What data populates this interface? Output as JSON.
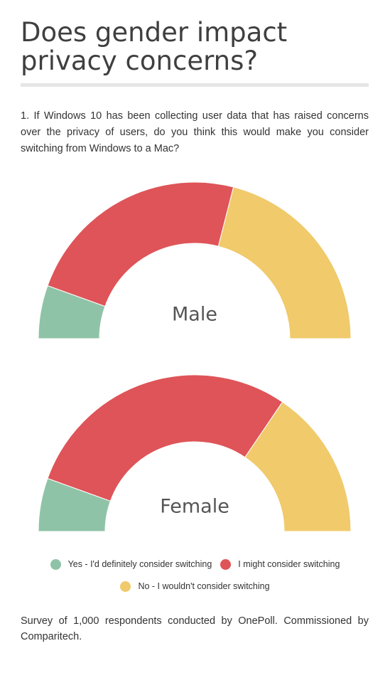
{
  "title": "Does gender impact privacy concerns?",
  "question": "1. If Windows 10 has been collecting user data that has raised concerns over the privacy of users, do you think this would make you consider switching from Windows to a Mac?",
  "colors": {
    "yes": "#8fc3a7",
    "might": "#de5458",
    "no": "#f0ca6b"
  },
  "chart_data": [
    {
      "type": "pie",
      "subtype": "semi-donut",
      "title": "Male",
      "categories": [
        "Yes - I'd definitely consider switching",
        "I might consider switching",
        "No - I wouldn't consider switching"
      ],
      "values": [
        11,
        47,
        42
      ]
    },
    {
      "type": "pie",
      "subtype": "semi-donut",
      "title": "Female",
      "categories": [
        "Yes - I'd definitely consider switching",
        "I might consider switching",
        "No - I wouldn't consider switching"
      ],
      "values": [
        11,
        58,
        31
      ]
    }
  ],
  "legend": [
    {
      "label": "Yes - I'd definitely consider switching",
      "color": "#8fc3a7"
    },
    {
      "label": "I might consider switching",
      "color": "#de5458"
    },
    {
      "label": "No - I wouldn't consider switching",
      "color": "#f0ca6b"
    }
  ],
  "footnote": "Survey of 1,000 respondents conducted by OnePoll. Commissioned by Comparitech."
}
